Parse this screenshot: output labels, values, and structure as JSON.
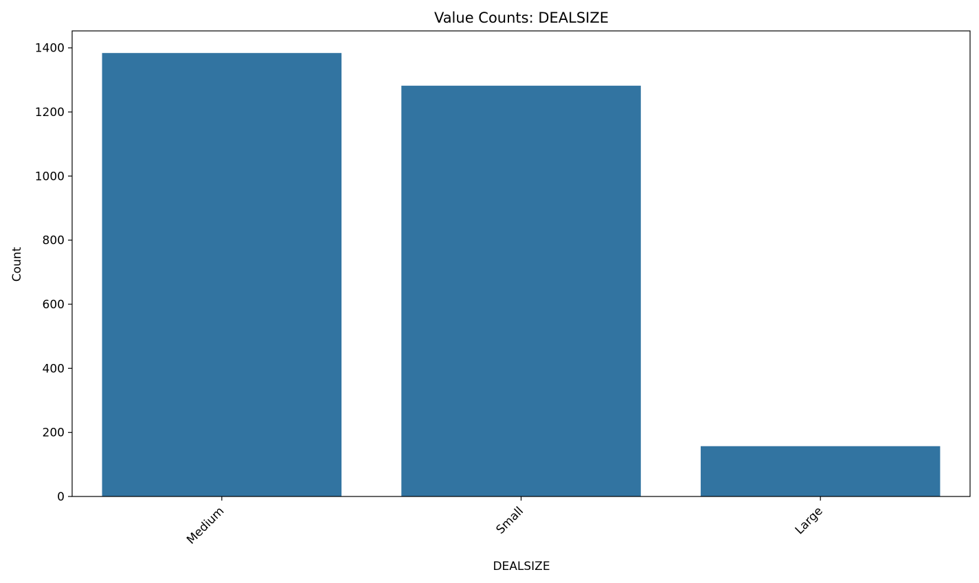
{
  "chart_data": {
    "type": "bar",
    "title": "Value Counts: DEALSIZE",
    "xlabel": "DEALSIZE",
    "ylabel": "Count",
    "categories": [
      "Medium",
      "Small",
      "Large"
    ],
    "values": [
      1384,
      1282,
      157
    ],
    "ylim": [
      0,
      1453
    ],
    "yticks": [
      0,
      200,
      400,
      600,
      800,
      1000,
      1200,
      1400
    ],
    "bar_color": "#3274a1",
    "grid": false,
    "legend": "none"
  }
}
